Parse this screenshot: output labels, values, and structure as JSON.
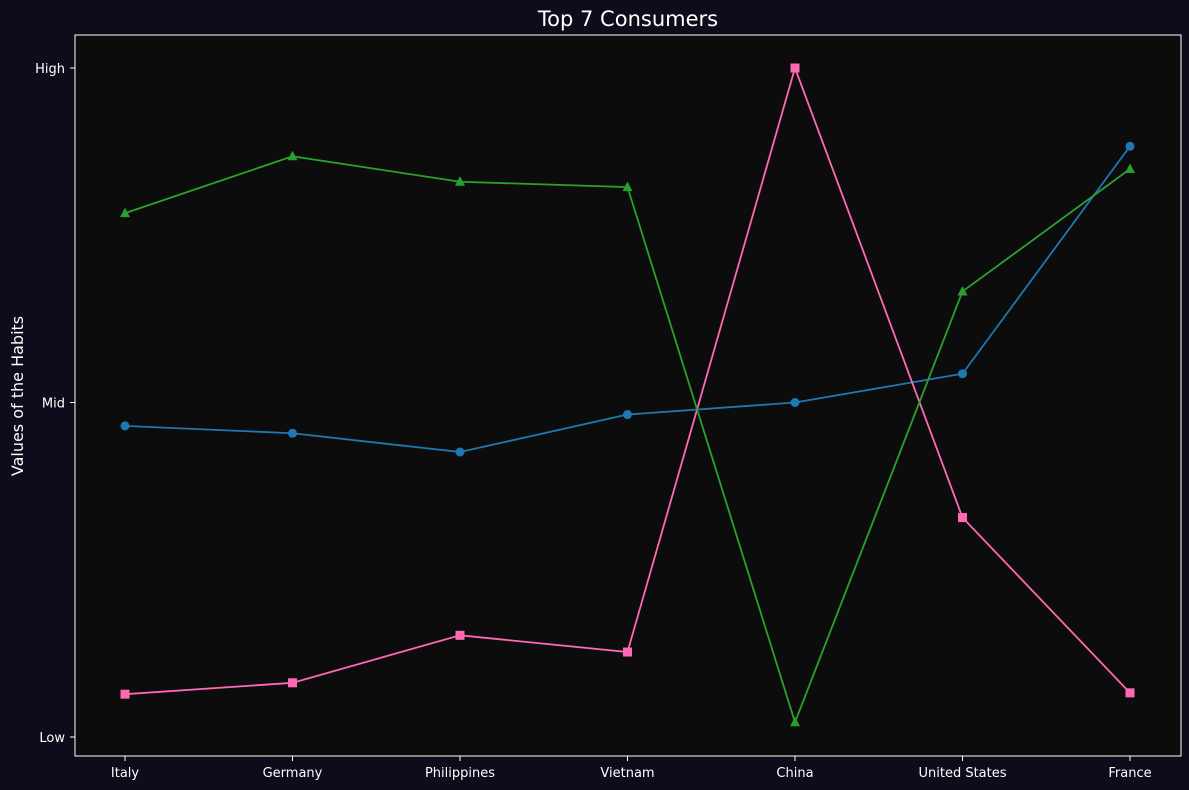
{
  "chart_data": {
    "type": "line",
    "title": "Top 7 Consumers",
    "xlabel": "",
    "ylabel": "Values of the Habits",
    "categories": [
      "Italy",
      "Germany",
      "Philippines",
      "Vietnam",
      "China",
      "United States",
      "France"
    ],
    "y_tick_labels": [
      "Low",
      "Mid",
      "High"
    ],
    "ylim": [
      0,
      1
    ],
    "grid": false,
    "series": [
      {
        "color": "#1f77b4",
        "marker": "circle",
        "values": [
          0.465,
          0.454,
          0.426,
          0.482,
          0.5,
          0.543,
          0.883
        ]
      },
      {
        "color": "#ff69b4",
        "marker": "square",
        "values": [
          0.064,
          0.081,
          0.152,
          0.127,
          1.0,
          0.328,
          0.066
        ]
      },
      {
        "color": "#2ca02c",
        "marker": "triangle",
        "values": [
          0.783,
          0.868,
          0.83,
          0.822,
          0.022,
          0.666,
          0.849
        ]
      }
    ],
    "colors": {
      "background": "#0c0c1a",
      "plot_background": "#0c0c0c",
      "axis": "#ffffff",
      "text": "#ffffff"
    }
  }
}
